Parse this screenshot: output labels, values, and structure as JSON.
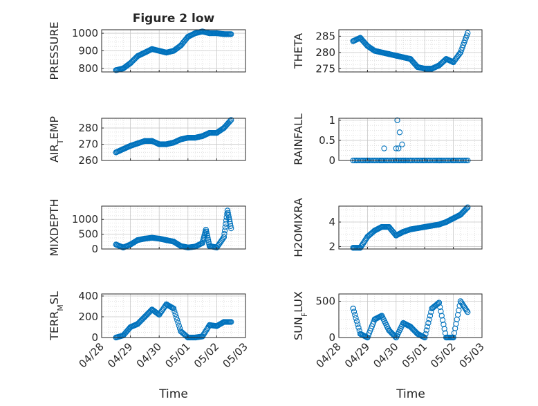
{
  "figure": {
    "title": "Figure 2 low",
    "xlabel": "Time"
  },
  "colors": {
    "marker": "#0072BD",
    "axis": "#262626",
    "grid": "#d6d6d6"
  },
  "x_ticks": [
    "04/28",
    "04/29",
    "04/30",
    "05/01",
    "05/02",
    "05/03"
  ],
  "chart_data": [
    {
      "type": "scatter",
      "ylabel": "PRESSURE",
      "ylim": [
        780,
        1020
      ],
      "yticks": [
        "800",
        "900",
        "1000"
      ],
      "ytick_values": [
        800,
        900,
        1000
      ],
      "x": [
        "04/28 12:00",
        "04/28 18:00",
        "04/29 00:00",
        "04/29 06:00",
        "04/29 12:00",
        "04/29 18:00",
        "04/30 00:00",
        "04/30 06:00",
        "04/30 12:00",
        "04/30 18:00",
        "05/01 00:00",
        "05/01 06:00",
        "05/01 12:00",
        "05/01 18:00",
        "05/02 00:00",
        "05/02 06:00",
        "05/02 12:00"
      ],
      "y": [
        790,
        800,
        830,
        870,
        890,
        910,
        900,
        890,
        900,
        930,
        980,
        1000,
        1010,
        1000,
        1000,
        995,
        995
      ]
    },
    {
      "type": "scatter",
      "ylabel": "THETA",
      "ylim": [
        274,
        287
      ],
      "yticks": [
        "275",
        "280",
        "285"
      ],
      "ytick_values": [
        275,
        280,
        285
      ],
      "x": [
        "04/28 12:00",
        "04/28 18:00",
        "04/29 00:00",
        "04/29 06:00",
        "04/29 12:00",
        "04/29 18:00",
        "04/30 00:00",
        "04/30 06:00",
        "04/30 12:00",
        "04/30 18:00",
        "05/01 00:00",
        "05/01 06:00",
        "05/01 12:00",
        "05/01 18:00",
        "05/02 00:00",
        "05/02 06:00",
        "05/02 12:00"
      ],
      "y": [
        283.5,
        284.5,
        282,
        280.5,
        280,
        279.5,
        279,
        278.5,
        278,
        275.5,
        275,
        275,
        276,
        278,
        277,
        280,
        286
      ]
    },
    {
      "type": "scatter",
      "ylabel": "AIR_TEMP",
      "ylim": [
        260,
        286
      ],
      "yticks": [
        "260",
        "270",
        "280"
      ],
      "ytick_values": [
        260,
        270,
        280
      ],
      "x": [
        "04/28 12:00",
        "04/28 18:00",
        "04/29 00:00",
        "04/29 06:00",
        "04/29 12:00",
        "04/29 18:00",
        "04/30 00:00",
        "04/30 06:00",
        "04/30 12:00",
        "04/30 18:00",
        "05/01 00:00",
        "05/01 06:00",
        "05/01 12:00",
        "05/01 18:00",
        "05/02 00:00",
        "05/02 06:00",
        "05/02 12:00"
      ],
      "y": [
        265,
        267,
        269,
        270.5,
        272,
        272,
        270,
        270,
        271,
        273,
        274,
        274,
        275,
        277,
        277,
        280,
        285
      ]
    },
    {
      "type": "scatter",
      "ylabel": "RAINFALL",
      "ylim": [
        0,
        1.05
      ],
      "yticks": [
        "0",
        "0.5",
        "1"
      ],
      "ytick_values": [
        0,
        0.5,
        1
      ],
      "x": [
        "04/28 12:00",
        "04/29 00:00",
        "04/29 12:00",
        "04/30 00:00",
        "04/30 08:00",
        "04/30 12:00",
        "04/30 20:00",
        "05/01 00:00",
        "05/01 12:00",
        "05/02 00:00",
        "05/02 12:00",
        "04/29 14:00",
        "04/30 00:00",
        "04/30 01:00",
        "04/30 02:00",
        "04/30 03:00",
        "04/30 04:00",
        "04/30 05:00",
        "04/30 06:00"
      ],
      "y": [
        0,
        0,
        0,
        0,
        0,
        0,
        0,
        0,
        0,
        0,
        0,
        0.3,
        0.3,
        1.0,
        0.3,
        0.7,
        0.0,
        0.4,
        0.0
      ]
    },
    {
      "type": "scatter",
      "ylabel": "MIXDEPTH",
      "ylim": [
        0,
        1450
      ],
      "yticks": [
        "0",
        "500",
        "1000"
      ],
      "ytick_values": [
        0,
        500,
        1000
      ],
      "x": [
        "04/28 12:00",
        "04/28 18:00",
        "04/29 00:00",
        "04/29 06:00",
        "04/29 12:00",
        "04/29 18:00",
        "04/30 00:00",
        "04/30 06:00",
        "04/30 12:00",
        "04/30 18:00",
        "05/01 00:00",
        "05/01 06:00",
        "05/01 12:00",
        "05/01 15:00",
        "05/01 18:00",
        "05/02 00:00",
        "05/02 06:00",
        "05/02 09:00",
        "05/02 12:00"
      ],
      "y": [
        150,
        50,
        150,
        300,
        350,
        380,
        350,
        300,
        250,
        100,
        50,
        80,
        200,
        650,
        100,
        50,
        400,
        1300,
        700
      ]
    },
    {
      "type": "scatter",
      "ylabel": "H2OMIXRA",
      "ylim": [
        1.8,
        5.3
      ],
      "yticks": [
        "2",
        "4"
      ],
      "ytick_values": [
        2,
        4
      ],
      "x": [
        "04/28 12:00",
        "04/28 18:00",
        "04/29 00:00",
        "04/29 06:00",
        "04/29 12:00",
        "04/29 18:00",
        "04/30 00:00",
        "04/30 06:00",
        "04/30 12:00",
        "04/30 18:00",
        "05/01 00:00",
        "05/01 06:00",
        "05/01 12:00",
        "05/01 18:00",
        "05/02 00:00",
        "05/02 06:00",
        "05/02 12:00"
      ],
      "y": [
        1.9,
        1.9,
        2.8,
        3.3,
        3.6,
        3.6,
        2.9,
        3.2,
        3.4,
        3.5,
        3.6,
        3.7,
        3.8,
        4.0,
        4.3,
        4.6,
        5.2
      ]
    },
    {
      "type": "scatter",
      "ylabel": "TERR_MSL",
      "ylim": [
        0,
        420
      ],
      "yticks": [
        "0",
        "200",
        "400"
      ],
      "ytick_values": [
        0,
        200,
        400
      ],
      "x": [
        "04/28 12:00",
        "04/28 18:00",
        "04/29 00:00",
        "04/29 06:00",
        "04/29 12:00",
        "04/29 18:00",
        "04/30 00:00",
        "04/30 06:00",
        "04/30 12:00",
        "04/30 18:00",
        "05/01 00:00",
        "05/01 06:00",
        "05/01 12:00",
        "05/01 18:00",
        "05/02 00:00",
        "05/02 06:00",
        "05/02 12:00"
      ],
      "y": [
        0,
        20,
        100,
        130,
        200,
        270,
        220,
        320,
        280,
        60,
        0,
        0,
        10,
        120,
        110,
        150,
        150
      ]
    },
    {
      "type": "scatter",
      "ylabel": "SUN_FLUX",
      "ylim": [
        0,
        600
      ],
      "yticks": [
        "0",
        "500"
      ],
      "ytick_values": [
        0,
        500
      ],
      "x": [
        "04/28 12:00",
        "04/28 18:00",
        "04/29 00:00",
        "04/29 06:00",
        "04/29 12:00",
        "04/29 18:00",
        "04/30 00:00",
        "04/30 06:00",
        "04/30 12:00",
        "04/30 18:00",
        "05/01 00:00",
        "05/01 06:00",
        "05/01 12:00",
        "05/01 18:00",
        "05/02 00:00",
        "05/02 06:00",
        "05/02 12:00"
      ],
      "y": [
        400,
        50,
        0,
        250,
        300,
        100,
        0,
        200,
        150,
        50,
        0,
        400,
        480,
        0,
        0,
        500,
        350
      ]
    }
  ]
}
